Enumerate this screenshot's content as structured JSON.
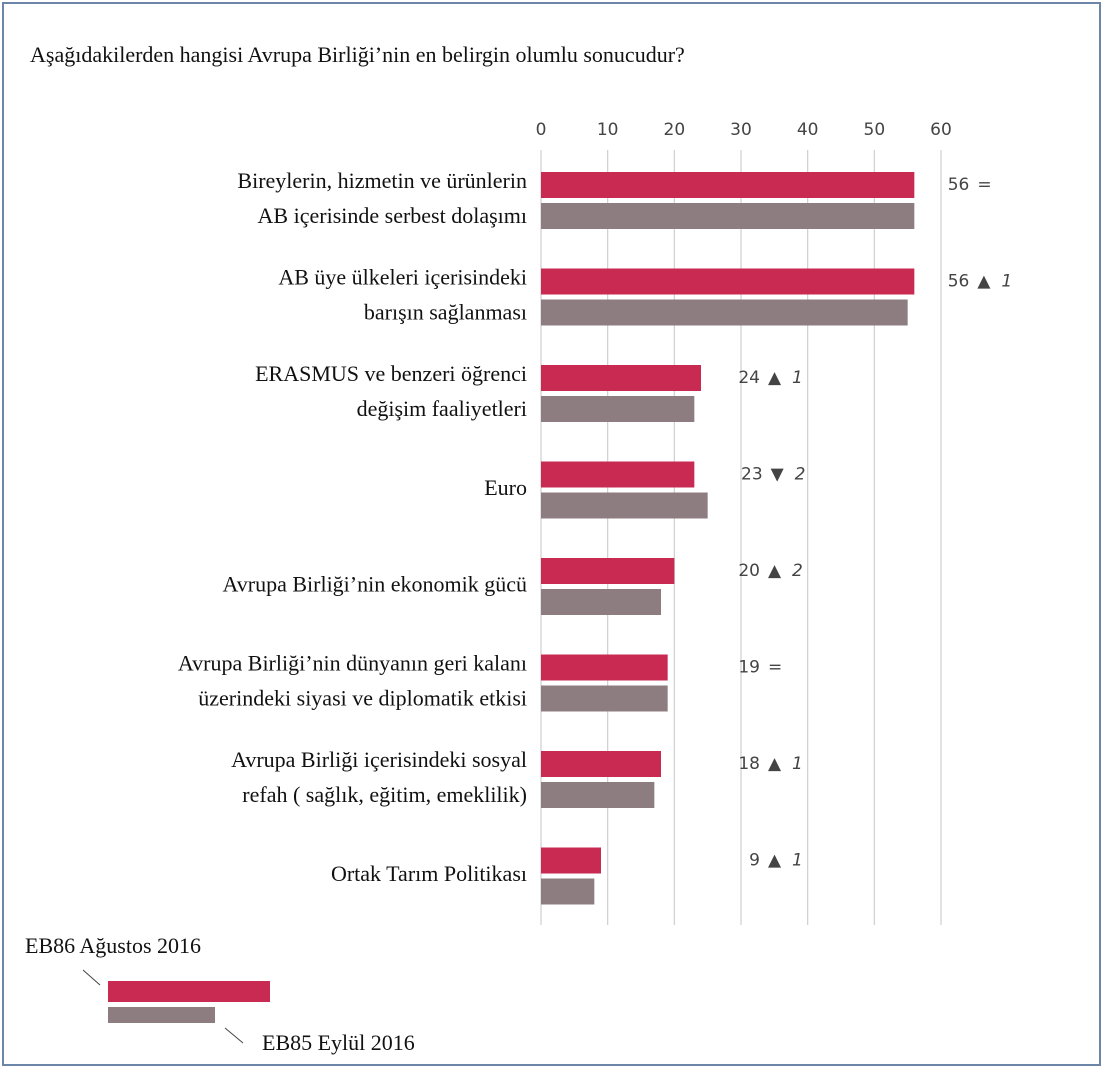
{
  "chart_data": {
    "type": "bar",
    "orientation": "horizontal",
    "title": "Aşağıdakilerden hangisi Avrupa Birliği’nin en belirgin olumlu sonucudur?",
    "categories": [
      [
        "Bireylerin, hizmetin ve ürünlerin",
        "AB içerisinde serbest dolaşımı"
      ],
      [
        "AB üye ülkeleri içerisindeki",
        "barışın sağlanması"
      ],
      [
        "ERASMUS ve benzeri öğrenci",
        "değişim faaliyetleri"
      ],
      [
        "Euro"
      ],
      [
        "Avrupa Birliği’nin ekonomik gücü"
      ],
      [
        "Avrupa Birliği’nin dünyanın geri kalanı",
        "üzerindeki siyasi ve diplomatik etkisi"
      ],
      [
        "Avrupa Birliği içerisindeki sosyal",
        "refah ( sağlık, eğitim, emeklilik)"
      ],
      [
        "Ortak Tarım Politikası"
      ]
    ],
    "series": [
      {
        "name": "EB86 Ağustos 2016",
        "color": "#c92a52",
        "values": [
          56,
          56,
          24,
          23,
          20,
          19,
          18,
          9
        ]
      },
      {
        "name": "EB85 Eylül 2016",
        "color": "#8d7d80",
        "values": [
          56,
          55,
          23,
          25,
          18,
          19,
          17,
          8
        ]
      }
    ],
    "changes": [
      {
        "symbol": "="
      },
      {
        "symbol": "▲",
        "amount": 1
      },
      {
        "symbol": "▲",
        "amount": 1
      },
      {
        "symbol": "▼",
        "amount": 2
      },
      {
        "symbol": "▲",
        "amount": 2
      },
      {
        "symbol": "="
      },
      {
        "symbol": "▲",
        "amount": 1
      },
      {
        "symbol": "▲",
        "amount": 1
      }
    ],
    "xlim": [
      0,
      60
    ],
    "xticks": [
      0,
      10,
      20,
      30,
      40,
      50,
      60
    ],
    "grid": true
  }
}
